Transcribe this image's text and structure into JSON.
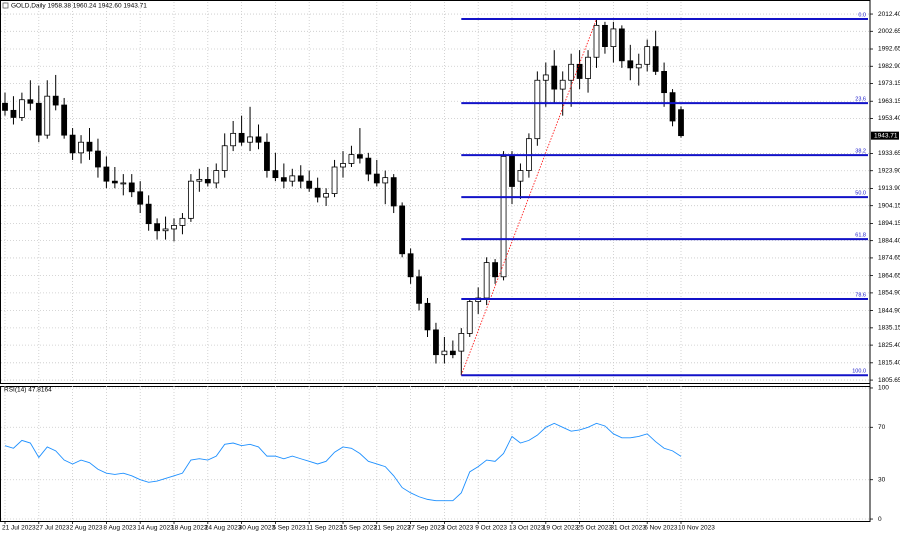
{
  "chart_data": [
    {
      "type": "candlestick",
      "title": "GOLD,Daily  1958.38 1960.24 1942.60 1943.71",
      "categories": [
        "21 Jul 2023",
        null,
        null,
        null,
        "27 Jul 2023",
        null,
        null,
        null,
        "2 Aug 2023",
        null,
        null,
        null,
        "8 Aug 2023",
        null,
        null,
        null,
        "14 Aug 2023",
        null,
        null,
        null,
        "18 Aug 2023",
        null,
        null,
        null,
        "24 Aug 2023",
        null,
        null,
        null,
        "30 Aug 2023",
        null,
        null,
        null,
        "5 Sep 2023",
        null,
        null,
        null,
        "11 Sep 2023",
        null,
        null,
        null,
        "15 Sep 2023",
        null,
        null,
        null,
        "21 Sep 2023",
        null,
        null,
        null,
        "27 Sep 2023",
        null,
        null,
        null,
        "3 Oct 2023",
        null,
        null,
        null,
        "9 Oct 2023",
        null,
        null,
        null,
        "13 Oct 2023",
        null,
        null,
        null,
        "19 Oct 2023",
        null,
        null,
        null,
        "25 Oct 2023",
        null,
        null,
        null,
        "31 Oct 2023",
        null,
        null,
        null,
        "6 Nov 2023",
        null,
        null,
        null,
        "10 Nov 2023"
      ],
      "open": [
        1962,
        1958,
        1954,
        1964,
        1962,
        1944,
        1966,
        1961,
        1944,
        1934,
        1940,
        1935,
        1926,
        1918,
        1917,
        1917,
        1912,
        1905,
        1894,
        1890,
        1891,
        1893,
        1897,
        1918,
        1919,
        1917,
        1924,
        1938,
        1945,
        1940,
        1943,
        1940,
        1924,
        1920,
        1918,
        1921,
        1918,
        1914,
        1909,
        1911,
        1926,
        1928,
        1933,
        1931,
        1922,
        1917,
        1920,
        1904,
        1877,
        1864,
        1849,
        1834,
        1820,
        1822,
        1822,
        1832,
        1850,
        1852,
        1872,
        1864,
        1932,
        1918,
        1924,
        1942,
        1975,
        1983,
        1970,
        1975,
        1984,
        1976,
        1988,
        2006,
        1994,
        2004,
        1986,
        1982,
        1984,
        1994,
        1980,
        1968,
        1958.38
      ],
      "high": [
        1968,
        1966,
        1968,
        1975,
        1972,
        1975,
        1978,
        1965,
        1948,
        1944,
        1948,
        1942,
        1932,
        1926,
        1922,
        1922,
        1918,
        1910,
        1897,
        1898,
        1897,
        1900,
        1922,
        1925,
        1926,
        1928,
        1945,
        1952,
        1955,
        1960,
        1950,
        1945,
        1934,
        1928,
        1925,
        1927,
        1924,
        1920,
        1914,
        1930,
        1935,
        1938,
        1948,
        1934,
        1930,
        1924,
        1922,
        1906,
        1880,
        1868,
        1852,
        1838,
        1830,
        1828,
        1835,
        1852,
        1858,
        1875,
        1874,
        1935,
        1935,
        1928,
        1945,
        1980,
        1985,
        1992,
        1980,
        1990,
        1992,
        1992,
        2009.6,
        2008,
        2008,
        2006,
        1995,
        1990,
        1998,
        2003,
        1985,
        1970,
        1960.24
      ],
      "low": [
        1955,
        1950,
        1952,
        1958,
        1940,
        1942,
        1958,
        1942,
        1930,
        1928,
        1930,
        1920,
        1914,
        1914,
        1910,
        1909,
        1900,
        1890,
        1885,
        1885,
        1884,
        1888,
        1895,
        1912,
        1915,
        1914,
        1920,
        1935,
        1938,
        1935,
        1936,
        1920,
        1918,
        1914,
        1915,
        1914,
        1912,
        1906,
        1904,
        1909,
        1920,
        1926,
        1928,
        1918,
        1915,
        1905,
        1900,
        1875,
        1860,
        1845,
        1830,
        1815,
        1815,
        1818,
        1808.4,
        1830,
        1843,
        1848,
        1860,
        1862,
        1905,
        1908,
        1920,
        1938,
        1960,
        1962,
        1955,
        1960,
        1970,
        1968,
        1982,
        1990,
        1985,
        1982,
        1975,
        1972,
        1980,
        1978,
        1960,
        1949,
        1942.6
      ],
      "close": [
        1958,
        1954,
        1964,
        1962,
        1944,
        1966,
        1961,
        1944,
        1934,
        1940,
        1935,
        1926,
        1918,
        1917,
        1917,
        1912,
        1905,
        1894,
        1890,
        1891,
        1893,
        1897,
        1918,
        1919,
        1917,
        1924,
        1938,
        1945,
        1940,
        1943,
        1940,
        1924,
        1920,
        1918,
        1921,
        1918,
        1914,
        1909,
        1911,
        1926,
        1928,
        1933,
        1931,
        1922,
        1917,
        1920,
        1904,
        1877,
        1864,
        1849,
        1834,
        1820,
        1822,
        1820,
        1832,
        1850,
        1852,
        1872,
        1864,
        1932,
        1915,
        1924,
        1942,
        1975,
        1978,
        1970,
        1975,
        1984,
        1976,
        1988,
        2006,
        1994,
        2004,
        1986,
        1982,
        1984,
        1994,
        1980,
        1968,
        1952,
        1943.71
      ],
      "up_color": "#ffffff",
      "down_color": "#000000",
      "ylim": [
        1804,
        2019.2
      ],
      "yticks": [
        {
          "value": 2012.4,
          "label": "2012.40"
        },
        2002.65,
        1992.65,
        {
          "value": 1982.9,
          "label": "1982.90"
        },
        1973.15,
        1963.15,
        {
          "value": 1953.4,
          "label": "1953.40"
        },
        1933.65,
        {
          "value": 1923.9,
          "label": "1923.90"
        },
        {
          "value": 1913.9,
          "label": "1913.90"
        },
        1904.15,
        1894.15,
        {
          "value": 1884.4,
          "label": "1884.40"
        },
        1874.65,
        1864.65,
        {
          "value": 1854.9,
          "label": "1854.90"
        },
        {
          "value": 1844.9,
          "label": "1844.90"
        },
        1835.15,
        {
          "value": 1825.4,
          "label": "1825.40"
        },
        {
          "value": 1815.4,
          "label": "1815.40"
        },
        1805.65
      ],
      "grid": true,
      "fibonacci_levels": [
        {
          "value": 0,
          "label": "0.0"
        },
        {
          "value": 23.6,
          "label": "23.6"
        },
        {
          "value": 38.2,
          "label": "38.2"
        },
        {
          "value": 50,
          "label": "50.0"
        },
        {
          "value": 61.8,
          "label": "61.8"
        },
        {
          "value": 78.6,
          "label": "78.6"
        },
        {
          "value": 100,
          "label": "100.0"
        }
      ],
      "fib_color": "#1212c8",
      "trend_color": "#ff0000"
    },
    {
      "type": "line",
      "title": "RSI(14) 47.8164",
      "values": [
        56,
        54,
        60,
        58,
        47,
        55,
        52,
        45,
        42,
        45,
        43,
        38,
        35,
        34,
        35,
        33,
        30,
        28,
        29,
        31,
        33,
        35,
        45,
        46,
        45,
        48,
        57,
        58,
        56,
        57,
        55,
        48,
        48,
        46,
        48,
        46,
        44,
        42,
        44,
        51,
        55,
        54,
        50,
        44,
        42,
        40,
        33,
        24,
        20,
        17,
        15,
        14,
        14,
        14,
        20,
        36,
        40,
        45,
        44,
        50,
        63,
        58,
        60,
        64,
        70,
        73,
        70,
        67,
        68,
        70,
        73,
        71,
        65,
        62,
        62,
        63,
        65,
        59,
        54,
        52,
        47.8164
      ],
      "color": "#1e90ff",
      "ylim": [
        -1.5,
        101.5
      ],
      "yticks": [
        100,
        70,
        30,
        0
      ],
      "grid": true
    }
  ]
}
